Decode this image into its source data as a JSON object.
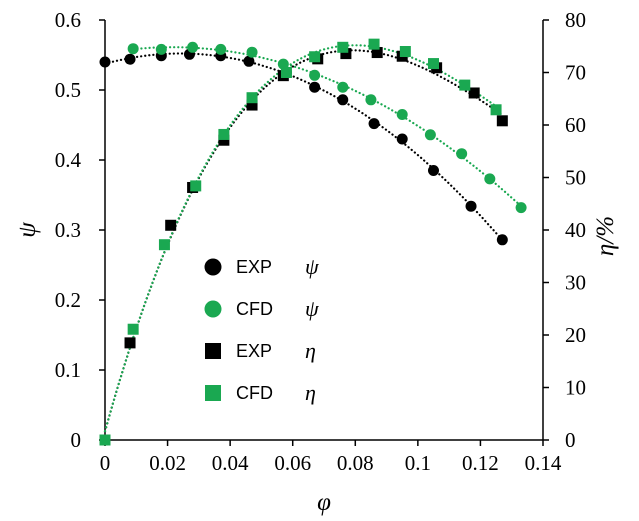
{
  "chart_data": {
    "type": "scatter",
    "x_axis": {
      "label": "φ",
      "range": [
        0,
        0.14
      ],
      "ticks": [
        "0",
        "0.02",
        "0.04",
        "0.06",
        "0.08",
        "0.1",
        "0.12",
        "0.14"
      ]
    },
    "y_left": {
      "label": "ψ",
      "range": [
        0,
        0.6
      ],
      "ticks": [
        "0",
        "0.1",
        "0.2",
        "0.3",
        "0.4",
        "0.5",
        "0.6"
      ]
    },
    "y_right": {
      "label": "η/%",
      "range": [
        0,
        80
      ],
      "ticks": [
        "0",
        "10",
        "20",
        "30",
        "40",
        "50",
        "60",
        "70",
        "80"
      ]
    },
    "grid": false,
    "legend_position": "lower-left inside plot",
    "colors": {
      "exp": "#000000",
      "cfd": "#1aa851"
    },
    "series": [
      {
        "legend_label": "EXP",
        "legend_symbol": "ψ",
        "axis": "left",
        "marker": "circle",
        "color": "#000000",
        "points": [
          [
            0,
            0.54
          ],
          [
            0.008,
            0.544
          ],
          [
            0.018,
            0.549
          ],
          [
            0.027,
            0.551
          ],
          [
            0.037,
            0.549
          ],
          [
            0.046,
            0.541
          ],
          [
            0.058,
            0.525
          ],
          [
            0.067,
            0.504
          ],
          [
            0.076,
            0.486
          ],
          [
            0.086,
            0.452
          ],
          [
            0.095,
            0.43
          ],
          [
            0.105,
            0.385
          ],
          [
            0.117,
            0.334
          ],
          [
            0.127,
            0.286
          ]
        ]
      },
      {
        "legend_label": "CFD",
        "legend_symbol": "ψ",
        "axis": "left",
        "marker": "circle",
        "color": "#1aa851",
        "points": [
          [
            0.009,
            0.559
          ],
          [
            0.018,
            0.558
          ],
          [
            0.028,
            0.561
          ],
          [
            0.037,
            0.558
          ],
          [
            0.047,
            0.554
          ],
          [
            0.057,
            0.537
          ],
          [
            0.067,
            0.521
          ],
          [
            0.076,
            0.504
          ],
          [
            0.085,
            0.486
          ],
          [
            0.095,
            0.465
          ],
          [
            0.104,
            0.436
          ],
          [
            0.114,
            0.409
          ],
          [
            0.123,
            0.373
          ],
          [
            0.133,
            0.332
          ]
        ]
      },
      {
        "legend_label": "EXP",
        "legend_symbol": "η",
        "axis": "right",
        "marker": "square",
        "color": "#000000",
        "points": [
          [
            0,
            0
          ],
          [
            0.008,
            18.5
          ],
          [
            0.021,
            40.9
          ],
          [
            0.028,
            48.1
          ],
          [
            0.038,
            57.1
          ],
          [
            0.047,
            63.8
          ],
          [
            0.057,
            69.4
          ],
          [
            0.068,
            72.6
          ],
          [
            0.077,
            73.6
          ],
          [
            0.087,
            73.8
          ],
          [
            0.095,
            73.1
          ],
          [
            0.106,
            70.9
          ],
          [
            0.118,
            66.1
          ],
          [
            0.127,
            60.8
          ]
        ]
      },
      {
        "legend_label": "CFD",
        "legend_symbol": "η",
        "axis": "right",
        "marker": "square",
        "color": "#1aa851",
        "points": [
          [
            0,
            0
          ],
          [
            0.009,
            21.1
          ],
          [
            0.019,
            37.2
          ],
          [
            0.029,
            48.4
          ],
          [
            0.038,
            58.2
          ],
          [
            0.047,
            65.2
          ],
          [
            0.058,
            70.0
          ],
          [
            0.067,
            73.0
          ],
          [
            0.076,
            74.8
          ],
          [
            0.086,
            75.4
          ],
          [
            0.096,
            74.0
          ],
          [
            0.105,
            71.7
          ],
          [
            0.115,
            67.6
          ],
          [
            0.125,
            62.9
          ]
        ]
      }
    ]
  }
}
